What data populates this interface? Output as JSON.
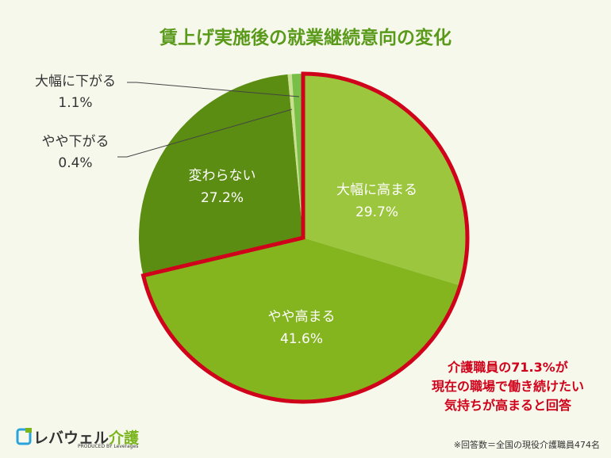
{
  "chart_data": {
    "type": "pie",
    "title": "賃上げ実施後の就業継続意向の変化",
    "slices": [
      {
        "label": "大幅に高まる",
        "value": 29.7,
        "display": "29.7%",
        "color": "#9dc63f"
      },
      {
        "label": "やや高まる",
        "value": 41.6,
        "display": "41.6%",
        "color": "#84b51f"
      },
      {
        "label": "変わらない",
        "value": 27.2,
        "display": "27.2%",
        "color": "#5b8d12"
      },
      {
        "label": "やや下がる",
        "value": 0.4,
        "display": "0.4%",
        "color": "#c9e08e"
      },
      {
        "label": "大幅に下がる",
        "value": 1.1,
        "display": "1.1%",
        "color": "#78bf47"
      }
    ],
    "highlight_color": "#d0021b",
    "annotation": [
      "介護職員の71.3%が",
      "現在の職場で働き続けたい",
      "気持ちが高まると回答"
    ]
  },
  "footer": {
    "logo_text": "レバウェル",
    "logo_accent": "介護",
    "logo_sub": "PRODUCED BY Leverages",
    "note": "※回答数＝全国の現役介護職員474名"
  }
}
